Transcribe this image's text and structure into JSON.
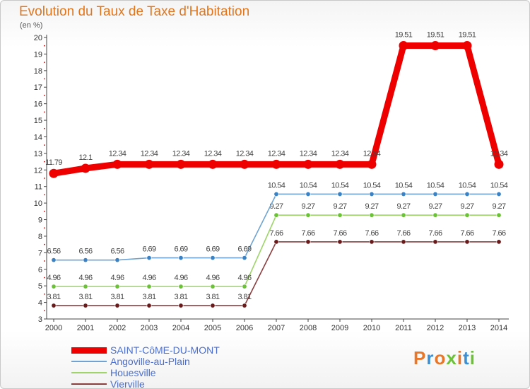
{
  "chart_data": {
    "type": "line",
    "title": "Evolution du Taux de Taxe d'Habitation",
    "subtitle": "(en %)",
    "xlabel": "",
    "ylabel": "",
    "ylim": [
      3,
      20
    ],
    "yticks": [
      3,
      4,
      5,
      6,
      7,
      8,
      9,
      10,
      11,
      12,
      13,
      14,
      15,
      16,
      17,
      18,
      19,
      20
    ],
    "categories": [
      "2000",
      "2001",
      "2002",
      "2003",
      "2004",
      "2005",
      "2006",
      "2007",
      "2008",
      "2009",
      "2010",
      "2011",
      "2012",
      "2013",
      "2014"
    ],
    "series": [
      {
        "name": "SAINT-CôME-DU-MONT",
        "color": "#ee0000",
        "marker": "#ee0000",
        "values": [
          11.79,
          12.1,
          12.34,
          12.34,
          12.34,
          12.34,
          12.34,
          12.34,
          12.34,
          12.34,
          12.34,
          19.51,
          19.51,
          19.51,
          12.34
        ],
        "labels": [
          "11.79",
          "12.1",
          "12.34",
          "12.34",
          "12.34",
          "12.34",
          "12.34",
          "12.34",
          "12.34",
          "12.34",
          "12.34",
          "19.51",
          "19.51",
          "19.51",
          "12.34"
        ]
      },
      {
        "name": "Angoville-au-Plain",
        "color": "#6fa3d2",
        "marker": "#3a82c4",
        "values": [
          6.56,
          6.56,
          6.56,
          6.69,
          6.69,
          6.69,
          6.69,
          10.54,
          10.54,
          10.54,
          10.54,
          10.54,
          10.54,
          10.54,
          10.54
        ],
        "labels": [
          "6.56",
          "6.56",
          "6.56",
          "6.69",
          "6.69",
          "6.69",
          "6.69",
          "10.54",
          "10.54",
          "10.54",
          "10.54",
          "10.54",
          "10.54",
          "10.54",
          "10.54"
        ]
      },
      {
        "name": "Houesville",
        "color": "#9ed46a",
        "marker": "#6cc236",
        "values": [
          4.96,
          4.96,
          4.96,
          4.96,
          4.96,
          4.96,
          4.96,
          9.27,
          9.27,
          9.27,
          9.27,
          9.27,
          9.27,
          9.27,
          9.27
        ],
        "labels": [
          "4.96",
          "4.96",
          "4.96",
          "4.96",
          "4.96",
          "4.96",
          "4.96",
          "9.27",
          "9.27",
          "9.27",
          "9.27",
          "9.27",
          "9.27",
          "9.27",
          "9.27"
        ]
      },
      {
        "name": "Vierville",
        "color": "#8a3f3f",
        "marker": "#6a1a1a",
        "values": [
          3.81,
          3.81,
          3.81,
          3.81,
          3.81,
          3.81,
          3.81,
          7.66,
          7.66,
          7.66,
          7.66,
          7.66,
          7.66,
          7.66,
          7.66
        ],
        "labels": [
          "3.81",
          "3.81",
          "3.81",
          "3.81",
          "3.81",
          "3.81",
          "3.81",
          "7.66",
          "7.66",
          "7.66",
          "7.66",
          "7.66",
          "7.66",
          "7.66",
          "7.66"
        ]
      }
    ],
    "legend_position": "bottom-left"
  },
  "legend": [
    {
      "label": "SAINT-CôME-DU-MONT"
    },
    {
      "label": "Angoville-au-Plain"
    },
    {
      "label": "Houesville"
    },
    {
      "label": "Vierville"
    }
  ],
  "logo": {
    "text": "Proxiti",
    "colors": [
      "#e8772a",
      "#3d8fd1",
      "#e8772a",
      "#6cc236",
      "#e8772a",
      "#3d8fd1",
      "#6cc236"
    ]
  }
}
